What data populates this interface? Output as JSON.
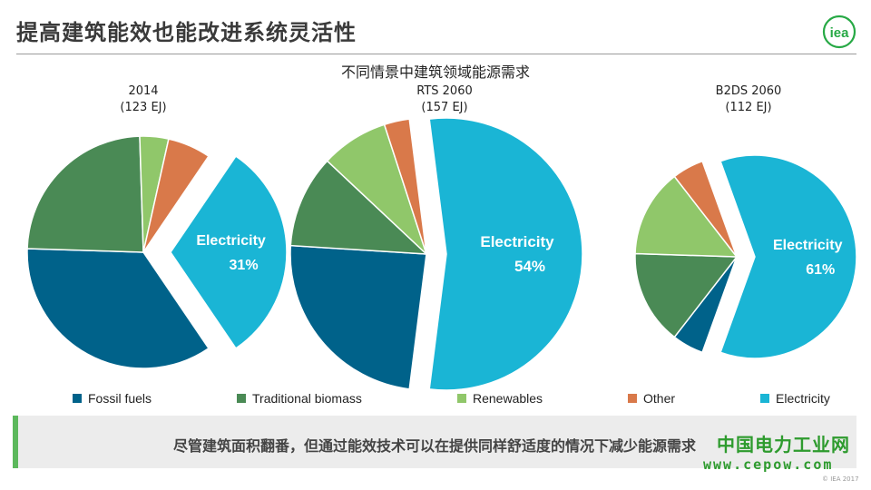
{
  "page": {
    "title": "提高建筑能效也能改进系统灵活性",
    "logo_text": "iea",
    "copyright": "© IEA 2017"
  },
  "note": {
    "text": "尽管建筑面积翻番，但通过能效技术可以在提供同样舒适度的情况下减少能源需求"
  },
  "watermark": {
    "name": "中国电力工业网",
    "url": "www.cepow.com"
  },
  "colors": {
    "Fossil fuels": "#00628a",
    "Traditional biomass": "#4a8a55",
    "Renewables": "#90c76a",
    "Other": "#d9794a",
    "Electricity": "#1ab5d5"
  },
  "chart_data": {
    "type": "pie",
    "title": "不同情景中建筑领域能源需求",
    "legend_position": "bottom",
    "categories": [
      "Fossil fuels",
      "Traditional biomass",
      "Renewables",
      "Other",
      "Electricity"
    ],
    "pies": [
      {
        "name": "2014",
        "total_label": "(123 EJ)",
        "total": 123,
        "values": [
          35,
          24,
          4,
          6,
          31
        ],
        "data_labels": {
          "Electricity": [
            "Electricity",
            "31%"
          ]
        }
      },
      {
        "name": "RTS 2060",
        "total_label": "(157 EJ)",
        "total": 157,
        "values": [
          24,
          11,
          8,
          3,
          54
        ],
        "data_labels": {
          "Electricity": [
            "Electricity",
            "54%"
          ]
        }
      },
      {
        "name": "B2DS 2060",
        "total_label": "(112 EJ)",
        "total": 112,
        "values": [
          5,
          15,
          14,
          5,
          61
        ],
        "data_labels": {
          "Electricity": [
            "Electricity",
            "61%"
          ]
        }
      }
    ]
  }
}
